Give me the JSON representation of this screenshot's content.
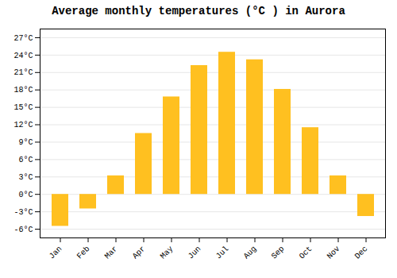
{
  "chart_data": {
    "type": "bar",
    "title": "Average monthly temperatures (°C ) in Aurora",
    "categories": [
      "Jan",
      "Feb",
      "Mar",
      "Apr",
      "May",
      "Jun",
      "Jul",
      "Aug",
      "Sep",
      "Oct",
      "Nov",
      "Dec"
    ],
    "values": [
      -5.5,
      -2.5,
      3.2,
      10.5,
      16.8,
      22.2,
      24.5,
      23.2,
      18.1,
      11.5,
      3.2,
      -3.8
    ],
    "color": "#FFC020",
    "ylim": [
      -7.5,
      28.5
    ],
    "yticks": [
      {
        "value": -6,
        "label": "-6°C"
      },
      {
        "value": -3,
        "label": "-3°C"
      },
      {
        "value": 0,
        "label": "0°C"
      },
      {
        "value": 3,
        "label": "3°C"
      },
      {
        "value": 6,
        "label": "6°C"
      },
      {
        "value": 9,
        "label": "9°C"
      },
      {
        "value": 12,
        "label": "12°C"
      },
      {
        "value": 15,
        "label": "15°C"
      },
      {
        "value": 18,
        "label": "18°C"
      },
      {
        "value": 21,
        "label": "21°C"
      },
      {
        "value": 24,
        "label": "24°C"
      },
      {
        "value": 27,
        "label": "27°C"
      }
    ],
    "grid": true
  }
}
